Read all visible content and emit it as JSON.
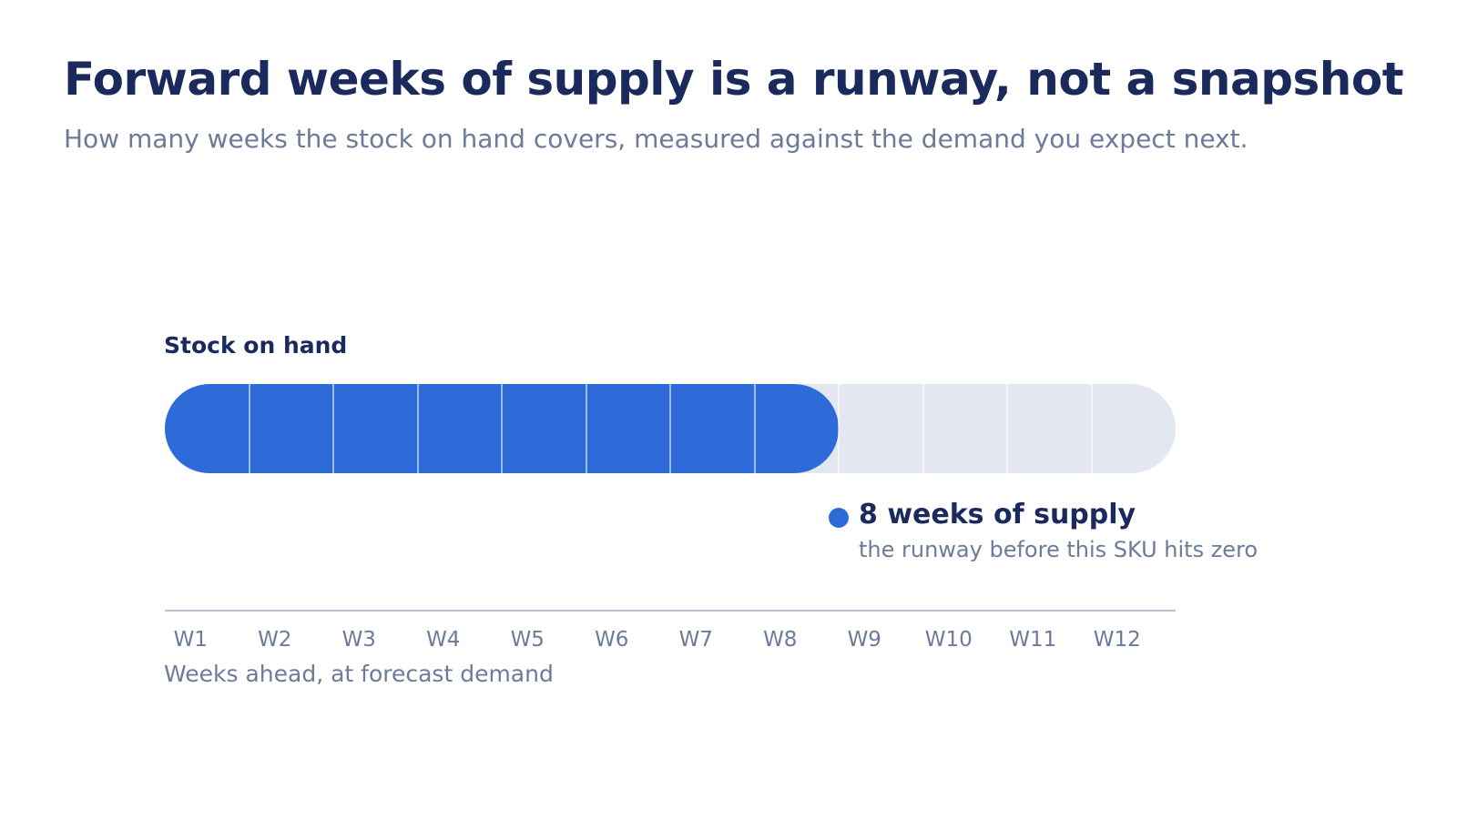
{
  "title": "Forward weeks of supply is a runway, not a snapshot",
  "subtitle": "How many weeks the stock on hand covers, measured against the demand you expect next.",
  "bar_label": "Stock on hand",
  "marker": {
    "value_text": "8 weeks of supply",
    "note": "the runway before this SKU hits zero"
  },
  "axis_title": "Weeks ahead, at forecast demand",
  "colors": {
    "covered": "#2e6bd8",
    "remaining": "#e3e7f0",
    "title": "#1b2a5c",
    "muted": "#6b7b99"
  },
  "chart_data": {
    "type": "bar",
    "categories": [
      "W1",
      "W2",
      "W3",
      "W4",
      "W5",
      "W6",
      "W7",
      "W8",
      "W9",
      "W10",
      "W11",
      "W12"
    ],
    "covered_weeks": 8,
    "total_weeks": 12
  }
}
